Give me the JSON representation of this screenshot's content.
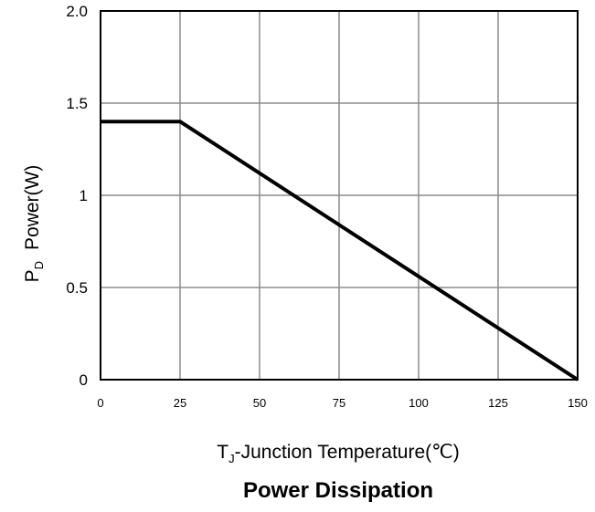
{
  "chart_data": {
    "type": "line",
    "title": "Power Dissipation",
    "xlabel": {
      "main": "T",
      "sub": "J",
      "rest": "-Junction Temperature(℃)"
    },
    "ylabel": {
      "main": "P",
      "sub": "D",
      "rest": "Power(W)"
    },
    "xlim": [
      0,
      150
    ],
    "ylim": [
      0,
      2.0
    ],
    "x_ticks": [
      0,
      25,
      50,
      75,
      100,
      125,
      150
    ],
    "x_tick_labels": [
      "0",
      "25",
      "50",
      "75",
      "100",
      "125",
      "150"
    ],
    "y_ticks": [
      0,
      0.5,
      1,
      1.5,
      2.0
    ],
    "y_tick_labels": [
      "0",
      "0.5",
      "1",
      "1.5",
      "2.0"
    ],
    "grid": true,
    "legend": "none",
    "series": [
      {
        "x": [
          0,
          25,
          150
        ],
        "y": [
          1.4,
          1.4,
          0
        ],
        "color": "#000000"
      }
    ]
  }
}
